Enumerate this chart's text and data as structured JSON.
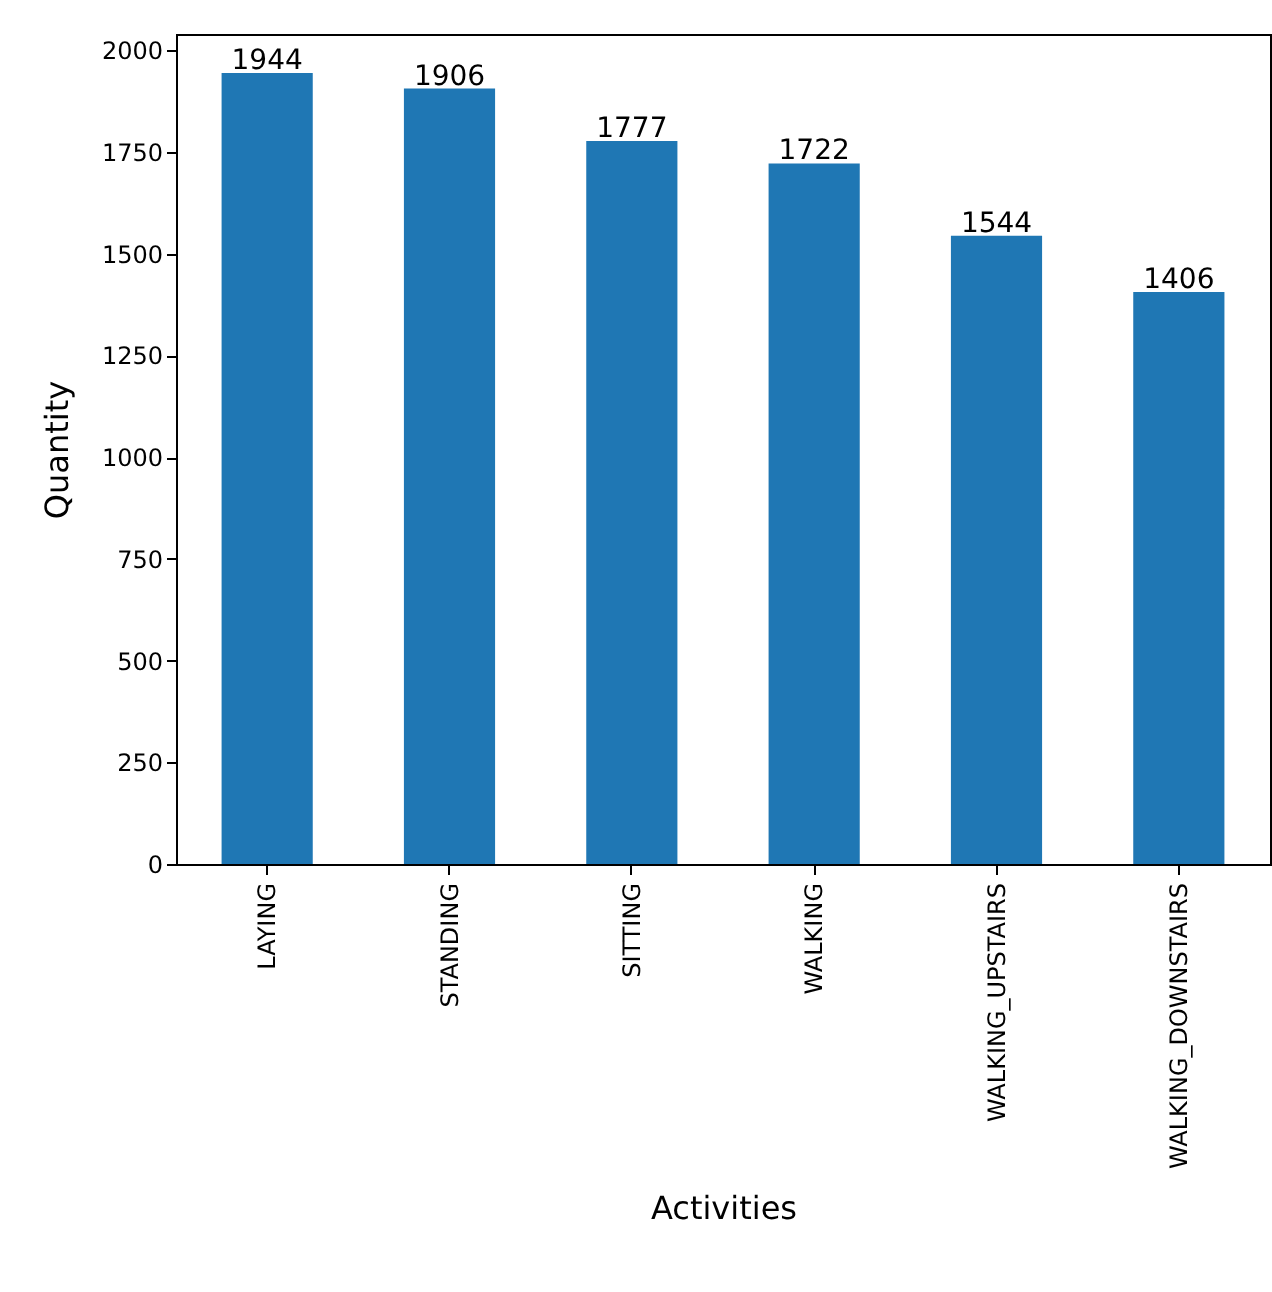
{
  "chart_data": {
    "type": "bar",
    "xlabel": "Activities",
    "ylabel": "Quantity",
    "categories": [
      "LAYING",
      "STANDING",
      "SITTING",
      "WALKING",
      "WALKING_UPSTAIRS",
      "WALKING_DOWNSTAIRS"
    ],
    "values": [
      1944,
      1906,
      1777,
      1722,
      1544,
      1406
    ],
    "color": "#1f77b4",
    "ylim": [
      0,
      2040
    ],
    "yticks": [
      0,
      250,
      500,
      750,
      1000,
      1250,
      1500,
      1750,
      2000
    ],
    "data_labels": true,
    "grid": false
  }
}
